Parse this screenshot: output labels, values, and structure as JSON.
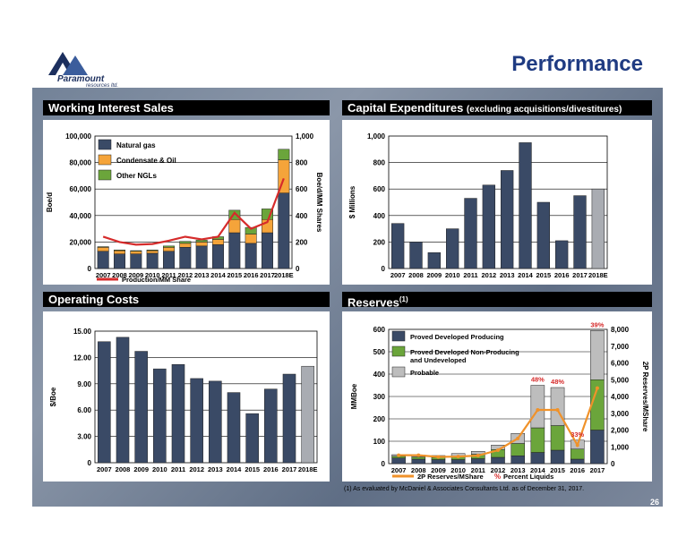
{
  "title": "Performance",
  "logo": {
    "name": "Paramount",
    "sub": "resources ltd."
  },
  "headers": {
    "working_interest": "Working Interest Sales",
    "capex_main": "Capital Expenditures ",
    "capex_sub": "(excluding acquisitions/divestitures)",
    "operating": "Operating Costs",
    "reserves": "Reserves",
    "reserves_sup": "(1)"
  },
  "footnote": "(1)  As evaluated by McDaniel & Associates Consultants Ltd. as of December 31, 2017.",
  "page_number": "26",
  "colors": {
    "natural_gas": "#3a4a66",
    "condensate": "#f5a43a",
    "ngl": "#6ba53b",
    "capex": "#3a4a66",
    "capex_forecast": "#a9acb2",
    "opcost": "#3a4a66",
    "opcost_forecast": "#a9acb2",
    "pdp": "#3a4a66",
    "pdnp": "#6ba53b",
    "probable": "#bdbdbd",
    "share_line": "#d62b2b",
    "liquids_line": "#f0922a"
  },
  "chart_data": [
    {
      "id": "working-interest-sales",
      "type": "bar",
      "stacked": true,
      "categories": [
        "2007",
        "2008",
        "2009",
        "2010",
        "2011",
        "2012",
        "2013",
        "2014",
        "2015",
        "2016",
        "2017",
        "2018E"
      ],
      "series": [
        {
          "name": "Natural gas",
          "values": [
            13000,
            11000,
            11000,
            11500,
            13000,
            16000,
            17000,
            18000,
            27000,
            19000,
            27000,
            57000
          ]
        },
        {
          "name": "Condensate & Oil",
          "values": [
            3000,
            2500,
            2000,
            2000,
            3000,
            3000,
            3000,
            4000,
            10000,
            7000,
            10000,
            25000
          ]
        },
        {
          "name": "Other NGLs",
          "values": [
            500,
            500,
            500,
            500,
            1000,
            1500,
            1500,
            2000,
            7000,
            5000,
            8000,
            8000
          ]
        }
      ],
      "line": {
        "name": "Production/MM Share",
        "values": [
          240,
          200,
          180,
          185,
          210,
          240,
          220,
          240,
          420,
          300,
          350,
          680
        ]
      },
      "ylabel": "Boe/d",
      "y2label": "Boe/d/MM Shares",
      "ylim": [
        0,
        100000
      ],
      "y2lim": [
        0,
        1000
      ],
      "yticks": [
        "0",
        "20,000",
        "40,000",
        "60,000",
        "80,000",
        "100,000"
      ],
      "y2ticks": [
        "0",
        "200",
        "400",
        "600",
        "800",
        "1,000"
      ],
      "legend": "top-left"
    },
    {
      "id": "capital-expenditures",
      "type": "bar",
      "categories": [
        "2007",
        "2008",
        "2009",
        "2010",
        "2011",
        "2012",
        "2013",
        "2014",
        "2015",
        "2016",
        "2017",
        "2018E"
      ],
      "values": [
        340,
        200,
        120,
        300,
        530,
        630,
        740,
        950,
        500,
        210,
        550,
        600
      ],
      "ylabel": "$ Millions",
      "ylim": [
        0,
        1000
      ],
      "yticks": [
        "0",
        "200",
        "400",
        "600",
        "800",
        "1,000"
      ]
    },
    {
      "id": "operating-costs",
      "type": "bar",
      "categories": [
        "2007",
        "2008",
        "2009",
        "2010",
        "2011",
        "2012",
        "2013",
        "2014",
        "2015",
        "2016",
        "2017",
        "2018E"
      ],
      "values": [
        13.8,
        14.3,
        12.7,
        10.7,
        11.2,
        9.6,
        9.3,
        8.0,
        5.6,
        8.4,
        10.1,
        11.0
      ],
      "ylabel": "$/Boe",
      "ylim": [
        0,
        15
      ],
      "yticks": [
        "0",
        "3.00",
        "6.00",
        "9.00",
        "12.00",
        "15.00"
      ]
    },
    {
      "id": "reserves",
      "type": "bar",
      "stacked": true,
      "categories": [
        "2007",
        "2008",
        "2009",
        "2010",
        "2011",
        "2012",
        "2013",
        "2014",
        "2015",
        "2016",
        "2017"
      ],
      "series": [
        {
          "name": "Proved Developed Producing",
          "values": [
            25,
            20,
            18,
            18,
            22,
            28,
            35,
            50,
            60,
            20,
            150
          ]
        },
        {
          "name": "Proved Developed Non-Producing and Undeveloped",
          "values": [
            8,
            10,
            10,
            15,
            20,
            35,
            55,
            110,
            110,
            45,
            225
          ]
        },
        {
          "name": "Probable",
          "values": [
            7,
            8,
            8,
            12,
            13,
            20,
            45,
            190,
            170,
            40,
            220
          ]
        }
      ],
      "line": {
        "name": "2P Reserves/MShare",
        "values": [
          500,
          500,
          400,
          420,
          480,
          800,
          1500,
          3200,
          3200,
          1100,
          4500
        ]
      },
      "line_legend_symbol": "%",
      "line_legend_label": "Percent Liquids",
      "annotations": [
        "48%",
        "48%",
        "33%",
        "39%"
      ],
      "ylabel": "MMBoe",
      "y2label": "2P Reserves/MShare",
      "ylim": [
        0,
        600
      ],
      "y2lim": [
        0,
        8000
      ],
      "yticks": [
        "0",
        "100",
        "200",
        "300",
        "400",
        "500",
        "600"
      ],
      "y2ticks": [
        "0",
        "1,000",
        "2,000",
        "3,000",
        "4,000",
        "5,000",
        "6,000",
        "7,000",
        "8,000"
      ],
      "legend": "top-left"
    }
  ]
}
